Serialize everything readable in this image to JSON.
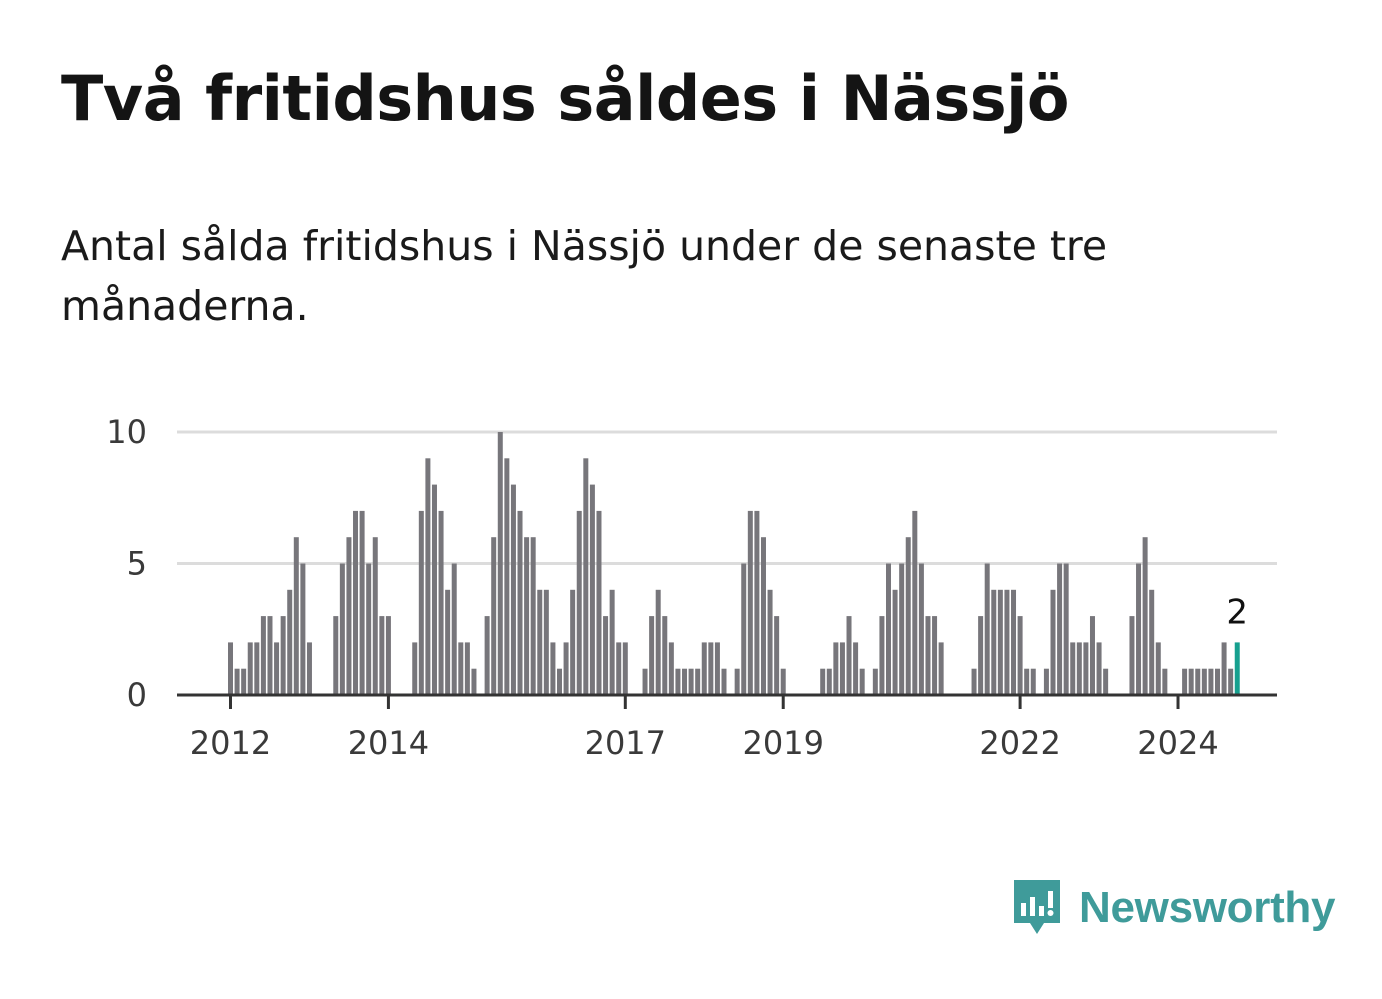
{
  "title": "Två fritidshus såldes i Nässjö",
  "subtitle": "Antal sålda fritidshus i Nässjö under de senaste tre månaderna.",
  "brand": {
    "name": "Newsworthy",
    "icon": "newsworthy-logo-icon"
  },
  "colors": {
    "bar": "#77767b",
    "highlight": "#17a08f",
    "grid": "#dcdcdc",
    "axis": "#333333",
    "brand": "#3f9b9a"
  },
  "chart_data": {
    "type": "bar",
    "title": "",
    "xlabel": "",
    "ylabel": "",
    "ylim": [
      0,
      10
    ],
    "yticks": [
      0,
      5,
      10
    ],
    "xticks": [
      "2012",
      "2014",
      "2017",
      "2019",
      "2022",
      "2024"
    ],
    "grid": true,
    "highlight_label": "2",
    "series": [
      {
        "values": [
          2,
          1,
          1,
          2,
          2,
          3,
          3,
          2,
          3,
          4,
          6,
          5,
          2,
          0,
          0,
          0,
          3,
          5,
          6,
          7,
          7,
          5,
          6,
          3,
          3,
          0,
          0,
          0,
          2,
          7,
          9,
          8,
          7,
          4,
          5,
          2,
          2,
          1,
          0,
          3,
          6,
          10,
          9,
          8,
          7,
          6,
          6,
          4,
          4,
          2,
          1,
          2,
          4,
          7,
          9,
          8,
          7,
          3,
          4,
          2,
          2,
          0,
          0,
          1,
          3,
          4,
          3,
          2,
          1,
          1,
          1,
          1,
          2,
          2,
          2,
          1,
          0,
          1,
          5,
          7,
          7,
          6,
          4,
          3,
          1,
          0,
          0,
          0,
          0,
          0,
          1,
          1,
          2,
          2,
          3,
          2,
          1,
          0,
          1,
          3,
          5,
          4,
          5,
          6,
          7,
          5,
          3,
          3,
          2,
          0,
          0,
          0,
          0,
          1,
          3,
          5,
          4,
          4,
          4,
          4,
          3,
          1,
          1,
          0,
          1,
          4,
          5,
          5,
          2,
          2,
          2,
          3,
          2,
          1,
          0,
          0,
          0,
          3,
          5,
          6,
          4,
          2,
          1,
          0,
          0,
          1,
          1,
          1,
          1,
          1,
          1,
          2,
          1,
          2
        ]
      }
    ]
  }
}
